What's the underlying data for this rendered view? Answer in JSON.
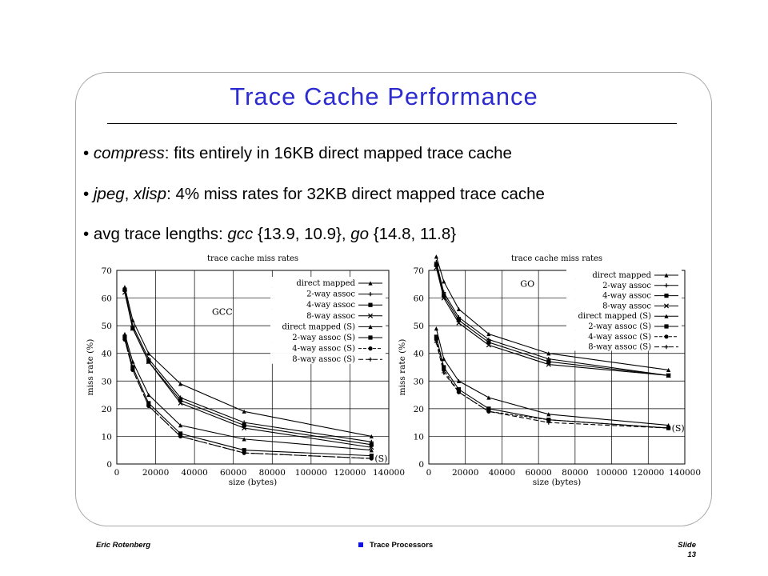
{
  "slide": {
    "title": "Trace Cache Performance",
    "bullets": [
      [
        {
          "t": "compress",
          "i": true
        },
        {
          "t": ": fits entirely in 16KB direct mapped trace cache",
          "i": false
        }
      ],
      [
        {
          "t": "jpeg",
          "i": true
        },
        {
          "t": ", ",
          "i": false
        },
        {
          "t": "xlisp",
          "i": true
        },
        {
          "t": ": 4% miss rates for 32KB direct mapped trace cache",
          "i": false
        }
      ],
      [
        {
          "t": "avg trace lengths: ",
          "i": false
        },
        {
          "t": "gcc",
          "i": true
        },
        {
          "t": " {13.9, 10.9}, ",
          "i": false
        },
        {
          "t": "go",
          "i": true
        },
        {
          "t": " {14.8, 11.8}",
          "i": false
        }
      ]
    ],
    "bullet_symbol": "•"
  },
  "footer": {
    "author": "Eric Rotenberg",
    "course": "Trace Processors",
    "slide_label": "Slide",
    "slide_number": "13"
  },
  "chart_data": [
    {
      "type": "line",
      "title": "trace cache miss rates",
      "annotation": "GCC",
      "end_annotation": "(S)",
      "xlabel": "size (bytes)",
      "ylabel": "miss rate (%)",
      "xlim": [
        0,
        140000
      ],
      "ylim": [
        0,
        70
      ],
      "xticks": [
        0,
        20000,
        40000,
        60000,
        80000,
        100000,
        120000,
        140000
      ],
      "yticks": [
        0,
        10,
        20,
        30,
        40,
        50,
        60,
        70
      ],
      "grid": true,
      "legend_position": "top-right",
      "x": [
        4096,
        8192,
        16384,
        32768,
        65536,
        131072
      ],
      "series": [
        {
          "name": "direct mapped",
          "values": [
            64,
            52,
            40,
            29,
            19,
            10
          ]
        },
        {
          "name": "2-way assoc",
          "values": [
            63,
            50,
            38,
            24,
            15,
            8
          ]
        },
        {
          "name": "4-way assoc",
          "values": [
            63,
            49,
            37,
            23,
            14,
            7
          ]
        },
        {
          "name": "8-way assoc",
          "values": [
            62,
            49,
            37,
            22,
            13,
            6
          ]
        },
        {
          "name": "direct mapped (S)",
          "values": [
            47,
            37,
            25,
            14,
            9,
            5
          ]
        },
        {
          "name": "2-way assoc (S)",
          "values": [
            46,
            35,
            22,
            11,
            5,
            3
          ]
        },
        {
          "name": "4-way assoc (S)",
          "values": [
            45,
            34,
            21,
            10,
            4,
            2
          ]
        },
        {
          "name": "8-way assoc (S)",
          "values": [
            45,
            34,
            21,
            10,
            4,
            2
          ]
        }
      ]
    },
    {
      "type": "line",
      "title": "trace cache miss rates",
      "annotation": "GO",
      "end_annotation": "(S)",
      "xlabel": "size (bytes)",
      "ylabel": "miss rate (%)",
      "xlim": [
        0,
        140000
      ],
      "ylim": [
        0,
        70
      ],
      "xticks": [
        0,
        20000,
        40000,
        60000,
        80000,
        100000,
        120000,
        140000
      ],
      "yticks": [
        0,
        10,
        20,
        30,
        40,
        50,
        60,
        70
      ],
      "grid": true,
      "legend_position": "top-right",
      "x": [
        4096,
        8192,
        16384,
        32768,
        65536,
        131072
      ],
      "series": [
        {
          "name": "direct mapped",
          "values": [
            75,
            66,
            56,
            47,
            40,
            34
          ]
        },
        {
          "name": "2-way assoc",
          "values": [
            73,
            62,
            53,
            45,
            38,
            32
          ]
        },
        {
          "name": "4-way assoc",
          "values": [
            72,
            61,
            52,
            44,
            37,
            32
          ]
        },
        {
          "name": "8-way assoc",
          "values": [
            71,
            60,
            51,
            43,
            36,
            32
          ]
        },
        {
          "name": "direct mapped (S)",
          "values": [
            49,
            38,
            30,
            24,
            18,
            14
          ]
        },
        {
          "name": "2-way assoc (S)",
          "values": [
            46,
            35,
            27,
            20,
            16,
            13
          ]
        },
        {
          "name": "4-way assoc (S)",
          "values": [
            45,
            34,
            26,
            19,
            16,
            13
          ]
        },
        {
          "name": "8-way assoc (S)",
          "values": [
            44,
            33,
            26,
            19,
            15,
            13
          ]
        }
      ]
    }
  ]
}
